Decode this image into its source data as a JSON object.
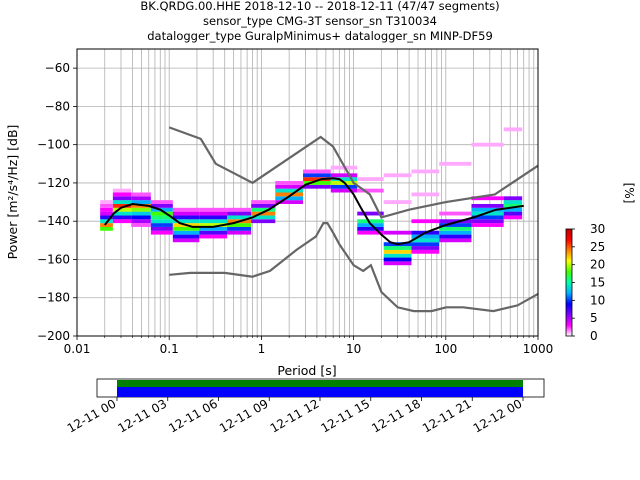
{
  "chart_data": {
    "type": "heatmap",
    "title_lines": [
      "BK.QRDG.00.HHE   2018-12-10 -- 2018-12-11  (47/47 segments)",
      "sensor_type CMG-3T sensor_sn T310034",
      "datalogger_type GuralpMinimus+ datalogger_sn MINP-DF59"
    ],
    "xlabel": "Period [s]",
    "ylabel": "Power [m²/s⁴/Hz] [dB]",
    "x_scale": "log",
    "xlim": [
      0.01,
      1000
    ],
    "ylim": [
      -200,
      -50
    ],
    "x_ticks": [
      {
        "v": 0.01,
        "label": "0.01"
      },
      {
        "v": 0.1,
        "label": "0.1"
      },
      {
        "v": 1,
        "label": "1"
      },
      {
        "v": 10,
        "label": "10"
      },
      {
        "v": 100,
        "label": "100"
      },
      {
        "v": 1000,
        "label": "1000"
      }
    ],
    "y_ticks": [
      -60,
      -80,
      -100,
      -120,
      -140,
      -160,
      -180,
      -200
    ],
    "grid": true,
    "colorbar": {
      "label": "[%]",
      "min": 0,
      "max": 30,
      "ticks": [
        0,
        5,
        10,
        15,
        20,
        25,
        30
      ],
      "colors": [
        "#ffffff",
        "#ff00ff",
        "#8000ff",
        "#0000ff",
        "#00b0ff",
        "#00ffb0",
        "#40ff00",
        "#ffff00",
        "#ff8000",
        "#ff0000",
        "#c00000"
      ]
    },
    "high_noise_model": [
      [
        0.1,
        -91
      ],
      [
        0.22,
        -97
      ],
      [
        0.32,
        -110
      ],
      [
        0.8,
        -120
      ],
      [
        3.8,
        -98
      ],
      [
        4.4,
        -96
      ],
      [
        6,
        -101
      ],
      [
        10,
        -120
      ],
      [
        15,
        -126
      ],
      [
        20,
        -138
      ],
      [
        40,
        -134
      ],
      [
        100,
        -130
      ],
      [
        340,
        -126
      ],
      [
        1000,
        -111
      ]
    ],
    "low_noise_model": [
      [
        0.1,
        -168
      ],
      [
        0.17,
        -167
      ],
      [
        0.4,
        -167
      ],
      [
        0.8,
        -169
      ],
      [
        1.24,
        -166
      ],
      [
        2.4,
        -155
      ],
      [
        3.9,
        -148
      ],
      [
        4.7,
        -141
      ],
      [
        5.2,
        -141
      ],
      [
        6,
        -146
      ],
      [
        7,
        -152
      ],
      [
        10,
        -163
      ],
      [
        12.7,
        -166
      ],
      [
        15.4,
        -163
      ],
      [
        20,
        -177
      ],
      [
        30,
        -185
      ],
      [
        45,
        -187
      ],
      [
        70,
        -187
      ],
      [
        101,
        -185
      ],
      [
        154,
        -185
      ],
      [
        328,
        -187
      ],
      [
        600,
        -184
      ],
      [
        1000,
        -178
      ]
    ],
    "mode_curve": [
      [
        0.02,
        -142
      ],
      [
        0.025,
        -136
      ],
      [
        0.03,
        -133
      ],
      [
        0.04,
        -131
      ],
      [
        0.06,
        -132
      ],
      [
        0.08,
        -134
      ],
      [
        0.1,
        -137
      ],
      [
        0.13,
        -141
      ],
      [
        0.18,
        -143
      ],
      [
        0.3,
        -143
      ],
      [
        0.5,
        -141
      ],
      [
        0.8,
        -138
      ],
      [
        1.2,
        -134
      ],
      [
        2,
        -127
      ],
      [
        3,
        -121
      ],
      [
        4.5,
        -118
      ],
      [
        6,
        -117.5
      ],
      [
        7,
        -118
      ],
      [
        8,
        -120
      ],
      [
        10,
        -126
      ],
      [
        12,
        -133
      ],
      [
        15,
        -141
      ],
      [
        20,
        -147
      ],
      [
        25,
        -151
      ],
      [
        30,
        -152
      ],
      [
        40,
        -151
      ],
      [
        60,
        -146
      ],
      [
        100,
        -142
      ],
      [
        200,
        -138
      ],
      [
        350,
        -134
      ],
      [
        500,
        -133
      ],
      [
        700,
        -132
      ]
    ],
    "ppsd_distribution": [
      {
        "period": 0.02,
        "bins": [
          [
            -144,
            18
          ],
          [
            -142,
            24
          ],
          [
            -140,
            14
          ],
          [
            -138,
            8
          ],
          [
            -136,
            4
          ],
          [
            -134,
            3
          ],
          [
            -132,
            2
          ],
          [
            -130,
            1
          ]
        ]
      },
      {
        "period": 0.03,
        "bins": [
          [
            -140,
            3
          ],
          [
            -138,
            8
          ],
          [
            -136,
            14
          ],
          [
            -134,
            20
          ],
          [
            -132,
            26
          ],
          [
            -130,
            14
          ],
          [
            -128,
            6
          ],
          [
            -126,
            3
          ],
          [
            -124,
            1
          ]
        ]
      },
      {
        "period": 0.05,
        "bins": [
          [
            -142,
            2
          ],
          [
            -140,
            5
          ],
          [
            -138,
            9
          ],
          [
            -136,
            13
          ],
          [
            -134,
            19
          ],
          [
            -132,
            24
          ],
          [
            -130,
            12
          ],
          [
            -128,
            5
          ],
          [
            -126,
            2
          ]
        ]
      },
      {
        "period": 0.08,
        "bins": [
          [
            -146,
            3
          ],
          [
            -144,
            6
          ],
          [
            -142,
            10
          ],
          [
            -140,
            14
          ],
          [
            -138,
            16
          ],
          [
            -136,
            18
          ],
          [
            -134,
            12
          ],
          [
            -132,
            6
          ],
          [
            -130,
            2
          ]
        ]
      },
      {
        "period": 0.15,
        "bins": [
          [
            -150,
            4
          ],
          [
            -148,
            8
          ],
          [
            -146,
            12
          ],
          [
            -144,
            18
          ],
          [
            -142,
            22
          ],
          [
            -140,
            14
          ],
          [
            -138,
            8
          ],
          [
            -136,
            4
          ],
          [
            -134,
            2
          ]
        ]
      },
      {
        "period": 0.3,
        "bins": [
          [
            -148,
            3
          ],
          [
            -146,
            7
          ],
          [
            -144,
            12
          ],
          [
            -142,
            20
          ],
          [
            -140,
            14
          ],
          [
            -138,
            8
          ],
          [
            -136,
            4
          ],
          [
            -134,
            2
          ]
        ]
      },
      {
        "period": 0.6,
        "bins": [
          [
            -146,
            4
          ],
          [
            -144,
            10
          ],
          [
            -142,
            18
          ],
          [
            -140,
            24
          ],
          [
            -138,
            14
          ],
          [
            -136,
            6
          ],
          [
            -134,
            2
          ]
        ]
      },
      {
        "period": 1,
        "bins": [
          [
            -140,
            6
          ],
          [
            -138,
            14
          ],
          [
            -136,
            24
          ],
          [
            -134,
            16
          ],
          [
            -132,
            6
          ],
          [
            -130,
            2
          ]
        ]
      },
      {
        "period": 2,
        "bins": [
          [
            -130,
            4
          ],
          [
            -128,
            12
          ],
          [
            -126,
            24
          ],
          [
            -124,
            14
          ],
          [
            -122,
            4
          ],
          [
            -120,
            2
          ]
        ]
      },
      {
        "period": 4,
        "bins": [
          [
            -122,
            6
          ],
          [
            -120,
            18
          ],
          [
            -118,
            26
          ],
          [
            -116,
            10
          ],
          [
            -114,
            2
          ]
        ]
      },
      {
        "period": 8,
        "bins": [
          [
            -124,
            4
          ],
          [
            -122,
            10
          ],
          [
            -120,
            20
          ],
          [
            -118,
            14
          ],
          [
            -116,
            4
          ],
          [
            -112,
            1
          ]
        ]
      },
      {
        "period": 15,
        "bins": [
          [
            -146,
            3
          ],
          [
            -144,
            8
          ],
          [
            -142,
            12
          ],
          [
            -140,
            16
          ],
          [
            -136,
            6
          ],
          [
            -124,
            2
          ],
          [
            -118,
            1
          ]
        ]
      },
      {
        "period": 30,
        "bins": [
          [
            -162,
            4
          ],
          [
            -160,
            9
          ],
          [
            -158,
            14
          ],
          [
            -156,
            22
          ],
          [
            -154,
            16
          ],
          [
            -152,
            10
          ],
          [
            -146,
            4
          ],
          [
            -130,
            1
          ],
          [
            -116,
            1
          ]
        ]
      },
      {
        "period": 60,
        "bins": [
          [
            -156,
            3
          ],
          [
            -154,
            6
          ],
          [
            -152,
            10
          ],
          [
            -150,
            14
          ],
          [
            -148,
            12
          ],
          [
            -146,
            8
          ],
          [
            -140,
            3
          ],
          [
            -126,
            1
          ],
          [
            -114,
            1
          ]
        ]
      },
      {
        "period": 120,
        "bins": [
          [
            -150,
            4
          ],
          [
            -148,
            8
          ],
          [
            -146,
            12
          ],
          [
            -144,
            16
          ],
          [
            -142,
            10
          ],
          [
            -140,
            6
          ],
          [
            -136,
            2
          ],
          [
            -110,
            1
          ]
        ]
      },
      {
        "period": 300,
        "bins": [
          [
            -142,
            3
          ],
          [
            -140,
            6
          ],
          [
            -138,
            10
          ],
          [
            -136,
            14
          ],
          [
            -134,
            12
          ],
          [
            -132,
            6
          ],
          [
            -128,
            3
          ],
          [
            -100,
            1
          ]
        ]
      },
      {
        "period": 600,
        "bins": [
          [
            -138,
            3
          ],
          [
            -136,
            7
          ],
          [
            -134,
            12
          ],
          [
            -132,
            16
          ],
          [
            -130,
            14
          ],
          [
            -128,
            6
          ],
          [
            -92,
            1
          ]
        ]
      }
    ],
    "timeline": {
      "tick_labels": [
        "12-11 00",
        "12-11 03",
        "12-11 06",
        "12-11 09",
        "12-11 12",
        "12-11 15",
        "12-11 18",
        "12-11 21",
        "12-12 00"
      ],
      "bands": [
        {
          "color": "#008000"
        },
        {
          "color": "#0000ff"
        }
      ]
    }
  }
}
